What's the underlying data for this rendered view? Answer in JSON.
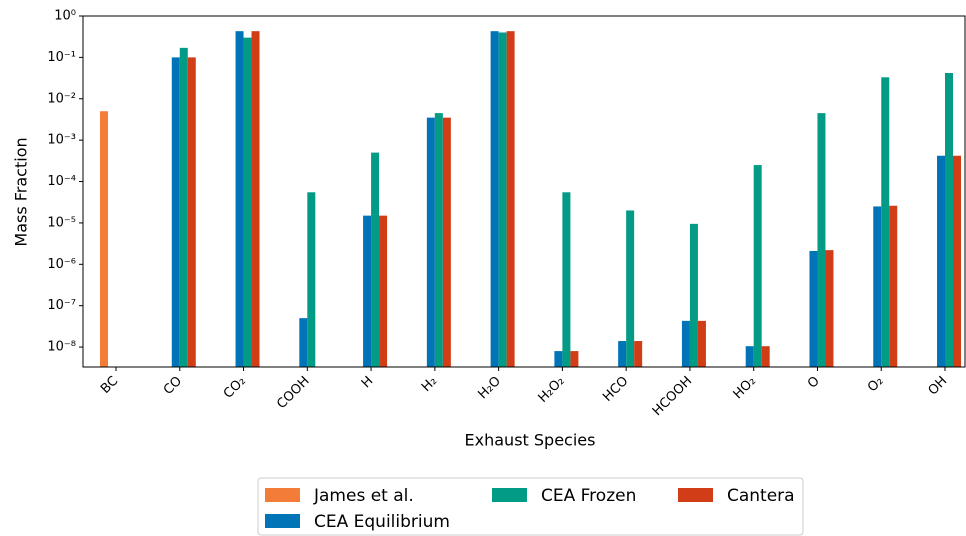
{
  "chart_data": {
    "type": "bar",
    "log_scale": true,
    "xlabel": "Exhaust Species",
    "ylabel": "Mass Fraction",
    "categories": [
      "BC",
      "CO",
      "CO₂",
      "COOH",
      "H",
      "H₂",
      "H₂O",
      "H₂O₂",
      "HCO",
      "HCOOH",
      "HO₂",
      "O",
      "O₂",
      "OH"
    ],
    "series": [
      {
        "name": "James et al.",
        "color": "#f27c38",
        "values": [
          0.005,
          null,
          null,
          null,
          null,
          null,
          null,
          null,
          null,
          null,
          null,
          null,
          null,
          null
        ]
      },
      {
        "name": "CEA Equilibrium",
        "color": "#0174b8",
        "values": [
          null,
          0.1,
          0.43,
          5e-08,
          1.5e-05,
          0.0035,
          0.43,
          8e-09,
          1.4e-08,
          4.3e-08,
          1.05e-08,
          2.1e-06,
          2.5e-05,
          0.00042
        ]
      },
      {
        "name": "CEA Frozen",
        "color": "#029c86",
        "values": [
          null,
          0.17,
          0.3,
          5.5e-05,
          0.0005,
          0.0045,
          0.4,
          5.5e-05,
          2e-05,
          9.5e-06,
          0.00025,
          0.0045,
          0.033,
          0.042
        ]
      },
      {
        "name": "Cantera",
        "color": "#d03d16",
        "values": [
          null,
          0.1,
          0.43,
          null,
          1.5e-05,
          0.0035,
          0.43,
          8e-09,
          1.4e-08,
          4.3e-08,
          1.05e-08,
          2.2e-06,
          2.6e-05,
          0.00042
        ]
      }
    ],
    "ylim": [
      3.3e-09,
      1
    ],
    "yticks": [
      {
        "value": 1,
        "label": "10⁰"
      },
      {
        "value": 0.1,
        "label": "10⁻¹"
      },
      {
        "value": 0.01,
        "label": "10⁻²"
      },
      {
        "value": 0.001,
        "label": "10⁻³"
      },
      {
        "value": 0.0001,
        "label": "10⁻⁴"
      },
      {
        "value": 1e-05,
        "label": "10⁻⁵"
      },
      {
        "value": 1e-06,
        "label": "10⁻⁶"
      },
      {
        "value": 1e-07,
        "label": "10⁻⁷"
      },
      {
        "value": 1e-08,
        "label": "10⁻⁸"
      }
    ],
    "grid": false,
    "legend": "lower center"
  }
}
